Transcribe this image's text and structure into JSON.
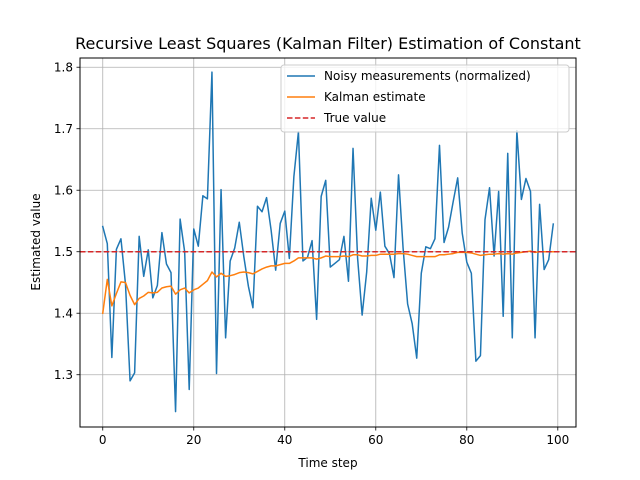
{
  "chart_data": {
    "type": "line",
    "title": "Recursive Least Squares (Kalman Filter) Estimation of Constant",
    "xlabel": "Time step",
    "ylabel": "Estimated value",
    "xlim": [
      -5,
      104
    ],
    "ylim": [
      1.215,
      1.815
    ],
    "xticks": [
      0,
      20,
      40,
      60,
      80,
      100
    ],
    "yticks": [
      1.3,
      1.4,
      1.5,
      1.6,
      1.7,
      1.8
    ],
    "xtick_labels": [
      "0",
      "20",
      "40",
      "60",
      "80",
      "100"
    ],
    "ytick_labels": [
      "1.3",
      "1.4",
      "1.5",
      "1.6",
      "1.7",
      "1.8"
    ],
    "grid": true,
    "legend_position": "top-right",
    "series": [
      {
        "name": "Noisy measurements (normalized)",
        "color": "#1f77b4",
        "style": "solid",
        "x": [
          0,
          1,
          2,
          3,
          4,
          5,
          6,
          7,
          8,
          9,
          10,
          11,
          12,
          13,
          14,
          15,
          16,
          17,
          18,
          19,
          20,
          21,
          22,
          23,
          24,
          25,
          26,
          27,
          28,
          29,
          30,
          31,
          32,
          33,
          34,
          35,
          36,
          37,
          38,
          39,
          40,
          41,
          42,
          43,
          44,
          45,
          46,
          47,
          48,
          49,
          50,
          51,
          52,
          53,
          54,
          55,
          56,
          57,
          58,
          59,
          60,
          61,
          62,
          63,
          64,
          65,
          66,
          67,
          68,
          69,
          70,
          71,
          72,
          73,
          74,
          75,
          76,
          77,
          78,
          79,
          80,
          81,
          82,
          83,
          84,
          85,
          86,
          87,
          88,
          89,
          90,
          91,
          92,
          93,
          94,
          95,
          96,
          97,
          98,
          99
        ],
        "values": [
          1.541,
          1.513,
          1.328,
          1.504,
          1.521,
          1.447,
          1.29,
          1.303,
          1.525,
          1.46,
          1.503,
          1.425,
          1.445,
          1.531,
          1.48,
          1.466,
          1.24,
          1.553,
          1.5,
          1.276,
          1.537,
          1.509,
          1.591,
          1.586,
          1.792,
          1.302,
          1.601,
          1.36,
          1.485,
          1.506,
          1.548,
          1.492,
          1.444,
          1.409,
          1.574,
          1.565,
          1.588,
          1.535,
          1.47,
          1.546,
          1.566,
          1.489,
          1.622,
          1.695,
          1.485,
          1.491,
          1.518,
          1.39,
          1.59,
          1.616,
          1.475,
          1.481,
          1.487,
          1.525,
          1.452,
          1.668,
          1.49,
          1.397,
          1.467,
          1.587,
          1.535,
          1.597,
          1.509,
          1.497,
          1.458,
          1.625,
          1.506,
          1.415,
          1.383,
          1.327,
          1.465,
          1.508,
          1.505,
          1.521,
          1.673,
          1.515,
          1.54,
          1.581,
          1.62,
          1.53,
          1.483,
          1.465,
          1.322,
          1.331,
          1.552,
          1.604,
          1.493,
          1.598,
          1.395,
          1.66,
          1.36,
          1.697,
          1.585,
          1.619,
          1.598,
          1.36,
          1.577,
          1.471,
          1.487,
          1.545
        ]
      },
      {
        "name": "Kalman estimate",
        "color": "#ff7f0e",
        "style": "solid",
        "x": [
          0,
          1,
          2,
          3,
          4,
          5,
          6,
          7,
          8,
          9,
          10,
          11,
          12,
          13,
          14,
          15,
          16,
          17,
          18,
          19,
          20,
          21,
          22,
          23,
          24,
          25,
          26,
          27,
          28,
          29,
          30,
          31,
          32,
          33,
          34,
          35,
          36,
          37,
          38,
          39,
          40,
          41,
          42,
          43,
          44,
          45,
          46,
          47,
          48,
          49,
          50,
          51,
          52,
          53,
          54,
          55,
          56,
          57,
          58,
          59,
          60,
          61,
          62,
          63,
          64,
          65,
          66,
          67,
          68,
          69,
          70,
          71,
          72,
          73,
          74,
          75,
          76,
          77,
          78,
          79,
          80,
          81,
          82,
          83,
          84,
          85,
          86,
          87,
          88,
          89,
          90,
          91,
          92,
          93,
          94,
          95,
          96,
          97,
          98,
          99
        ],
        "values": [
          1.4,
          1.455,
          1.412,
          1.432,
          1.451,
          1.45,
          1.429,
          1.414,
          1.424,
          1.428,
          1.434,
          1.433,
          1.434,
          1.441,
          1.443,
          1.444,
          1.431,
          1.438,
          1.441,
          1.433,
          1.438,
          1.441,
          1.447,
          1.453,
          1.467,
          1.459,
          1.465,
          1.46,
          1.461,
          1.463,
          1.466,
          1.467,
          1.466,
          1.464,
          1.468,
          1.472,
          1.475,
          1.477,
          1.477,
          1.479,
          1.481,
          1.481,
          1.485,
          1.49,
          1.49,
          1.49,
          1.49,
          1.488,
          1.49,
          1.493,
          1.492,
          1.492,
          1.492,
          1.493,
          1.492,
          1.495,
          1.495,
          1.493,
          1.493,
          1.494,
          1.494,
          1.496,
          1.496,
          1.496,
          1.496,
          1.497,
          1.497,
          1.496,
          1.494,
          1.492,
          1.492,
          1.492,
          1.492,
          1.492,
          1.495,
          1.495,
          1.496,
          1.497,
          1.499,
          1.499,
          1.499,
          1.498,
          1.496,
          1.494,
          1.495,
          1.496,
          1.496,
          1.497,
          1.496,
          1.497,
          1.496,
          1.498,
          1.499,
          1.5,
          1.501,
          1.499,
          1.5,
          1.5,
          1.5,
          1.5
        ]
      },
      {
        "name": "True value",
        "color": "#d62728",
        "style": "dashed",
        "constant": 1.5
      }
    ]
  }
}
